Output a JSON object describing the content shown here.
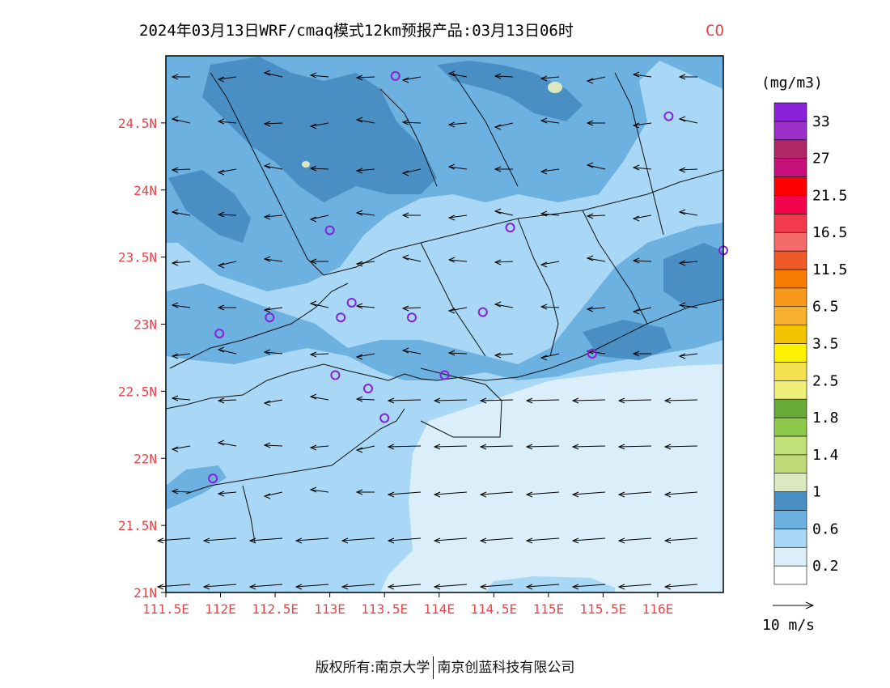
{
  "title": {
    "main": "2024年03月13日WRF/cmaq模式12km预报产品:03月13日06时",
    "species": "CO",
    "species_color": "#e8444a"
  },
  "colorbar": {
    "unit": "(mg/m3)",
    "colors": [
      "#ffffff",
      "#dbeffa",
      "#a8d8f5",
      "#6cb1e0",
      "#4a8fc4",
      "#dbe8c0",
      "#c0d97a",
      "#c0e07a",
      "#8dc848",
      "#6aaa38",
      "#eef07a",
      "#f5e050",
      "#fff000",
      "#f5c400",
      "#f7b030",
      "#f79a1c",
      "#f57c00",
      "#f05a28",
      "#f56a6a",
      "#f23a4c",
      "#f2054a",
      "#ff0000",
      "#c8107a",
      "#b02868",
      "#9b30c8",
      "#8a20d8"
    ],
    "labels": [
      "0.2",
      "0.6",
      "1",
      "1.4",
      "1.8",
      "2.5",
      "3.5",
      "6.5",
      "11.5",
      "16.5",
      "21.5",
      "27",
      "33"
    ]
  },
  "wind_legend": {
    "label": "10 m/s"
  },
  "map": {
    "lon_ticks": [
      "111.5E",
      "112E",
      "112.5E",
      "113E",
      "113.5E",
      "114E",
      "114.5E",
      "115E",
      "115.5E",
      "116E"
    ],
    "lat_ticks": [
      "21N",
      "21.5N",
      "22N",
      "22.5N",
      "23N",
      "23.5N",
      "24N",
      "24.5N"
    ],
    "tick_color": "#e8444a",
    "station_color": "#8a20d8",
    "stations": [
      {
        "lon": 113.6,
        "lat": 24.85
      },
      {
        "lon": 116.1,
        "lat": 24.55
      },
      {
        "lon": 113.0,
        "lat": 23.7
      },
      {
        "lon": 114.65,
        "lat": 23.72
      },
      {
        "lon": 116.6,
        "lat": 23.55
      },
      {
        "lon": 112.45,
        "lat": 23.05
      },
      {
        "lon": 113.1,
        "lat": 23.05
      },
      {
        "lon": 113.2,
        "lat": 23.16
      },
      {
        "lon": 113.75,
        "lat": 23.05
      },
      {
        "lon": 114.4,
        "lat": 23.09
      },
      {
        "lon": 111.99,
        "lat": 22.93
      },
      {
        "lon": 115.4,
        "lat": 22.78
      },
      {
        "lon": 113.05,
        "lat": 22.62
      },
      {
        "lon": 113.35,
        "lat": 22.52
      },
      {
        "lon": 114.05,
        "lat": 22.62
      },
      {
        "lon": 113.5,
        "lat": 22.3
      },
      {
        "lon": 111.93,
        "lat": 21.85
      }
    ]
  },
  "footer": {
    "left": "版权所有:南京大学",
    "right": "南京创蓝科技有限公司"
  }
}
